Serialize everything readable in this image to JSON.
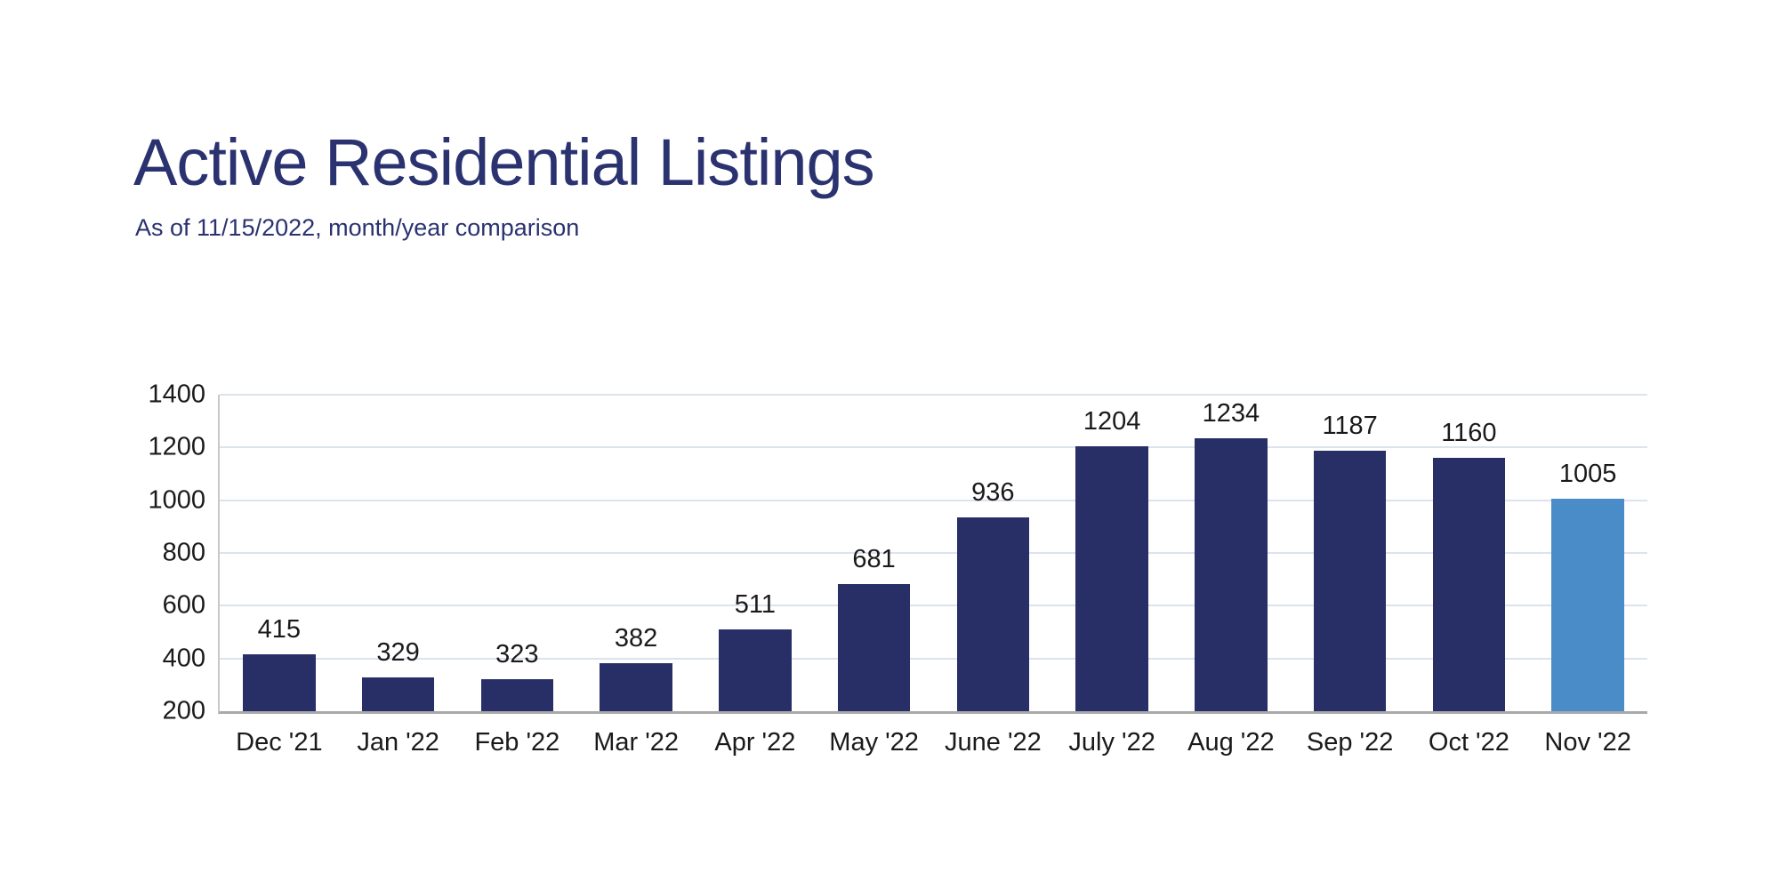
{
  "header": {
    "title": "Active Residential Listings",
    "subtitle": "As of 11/15/2022, month/year comparison",
    "title_color": "#2A3270"
  },
  "chart_data": {
    "type": "bar",
    "title": "Active Residential Listings",
    "subtitle": "As of 11/15/2022, month/year comparison",
    "categories": [
      "Dec '21",
      "Jan '22",
      "Feb '22",
      "Mar '22",
      "Apr '22",
      "May '22",
      "June '22",
      "July '22",
      "Aug '22",
      "Sep '22",
      "Oct '22",
      "Nov '22"
    ],
    "values": [
      415,
      329,
      323,
      382,
      511,
      681,
      936,
      1204,
      1234,
      1187,
      1160,
      1005
    ],
    "value_labels": [
      "415",
      "329",
      "323",
      "382",
      "511",
      "681",
      "936",
      "1204",
      "1234",
      "1187",
      "1160",
      "1005"
    ],
    "xlabel": "",
    "ylabel": "",
    "ylim": [
      200,
      1400
    ],
    "y_ticks": [
      200,
      400,
      600,
      800,
      1000,
      1200,
      1400
    ],
    "grid": true,
    "legend": "none",
    "highlight_index": 11,
    "colors": {
      "bar": "#272F66",
      "highlight_bar": "#4A8CC7",
      "gridline": "#DCE3EF",
      "baseline": "#A9A9A9",
      "left_axis": "#C8C8C8",
      "labels": "#1A1A1A",
      "title": "#2A3270"
    }
  }
}
